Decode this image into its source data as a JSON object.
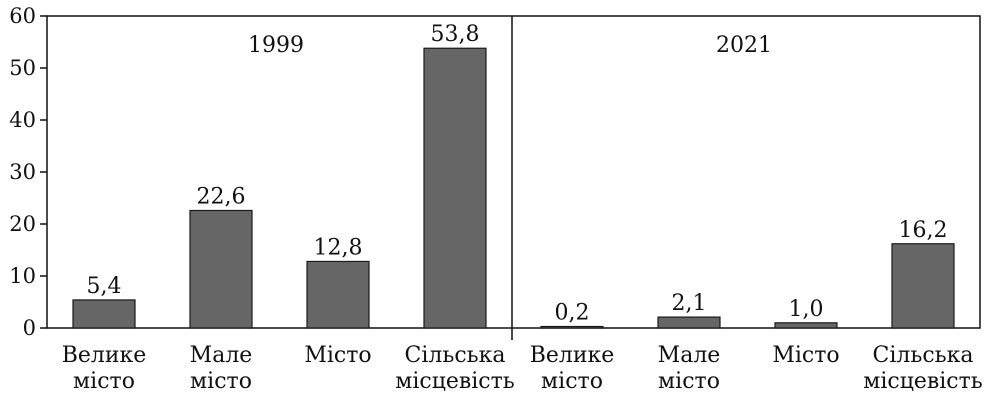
{
  "colors": {
    "bar_fill": "#666666",
    "bar_stroke": "#1a1a1a",
    "axis": "#111111",
    "background": "#ffffff"
  },
  "chart_data": {
    "type": "bar",
    "title": "",
    "xlabel": "",
    "ylabel": "",
    "ylim": [
      0,
      60
    ],
    "yticks": [
      "0",
      "10",
      "20",
      "30",
      "40",
      "50",
      "60"
    ],
    "grid": false,
    "legend": "none",
    "panels": [
      {
        "title": "1999",
        "categories": [
          [
            "Велике",
            "місто"
          ],
          [
            "Мале",
            "місто"
          ],
          [
            "Місто"
          ],
          [
            "Сільська",
            "місцевість"
          ]
        ],
        "values": [
          5.4,
          22.6,
          12.8,
          53.8
        ],
        "value_labels": [
          "5,4",
          "22,6",
          "12,8",
          "53,8"
        ]
      },
      {
        "title": "2021",
        "categories": [
          [
            "Велике",
            "місто"
          ],
          [
            "Мале",
            "місто"
          ],
          [
            "Місто"
          ],
          [
            "Сільська",
            "місцевість"
          ]
        ],
        "values": [
          0.2,
          2.1,
          1.0,
          16.2
        ],
        "value_labels": [
          "0,2",
          "2,1",
          "1,0",
          "16,2"
        ]
      }
    ]
  }
}
